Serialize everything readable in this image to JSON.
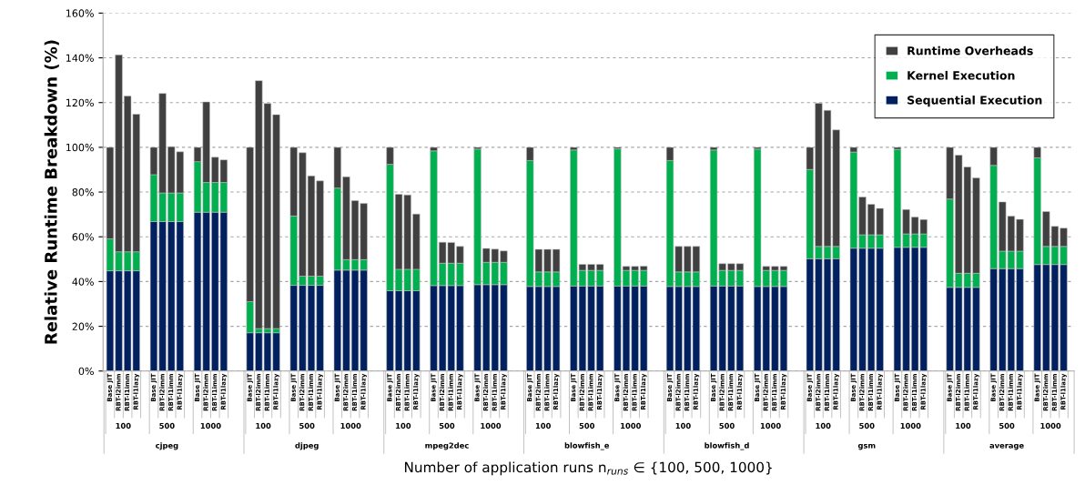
{
  "chart_data": {
    "type": "bar",
    "stacked": true,
    "ylabel": "Relative Runtime Breakdown (%)",
    "xlabel": "Number of application runs n$_{runs}$ ∈ {100, 500, 1000}",
    "categories": [
      "Base JIT",
      "RBT-l2imm",
      "RBT-l1imm",
      "RBT-l1lazy",
      null,
      "Base JIT",
      "RBT-l2imm",
      "RBT-l1imm",
      "RBT-l1lazy",
      null,
      "Base JIT",
      "RBT-l2imm",
      "RBT-l1imm",
      "RBT-l1lazy",
      null,
      null,
      "Base JIT",
      "RBT-l2imm",
      "RBT-l1imm",
      "RBT-l1lazy",
      null,
      "Base JIT",
      "RBT-l2imm",
      "RBT-l1imm",
      "RBT-l1lazy",
      null,
      "Base JIT",
      "RBT-l2imm",
      "RBT-l1imm",
      "RBT-l1lazy",
      null,
      null,
      "Base JIT",
      "RBT-l2imm",
      "RBT-l1imm",
      "RBT-l1lazy",
      null,
      "Base JIT",
      "RBT-l2imm",
      "RBT-l1imm",
      "RBT-l1lazy",
      null,
      "Base JIT",
      "RBT-l2imm",
      "RBT-l1imm",
      "RBT-l1lazy",
      null,
      null,
      "Base JIT",
      "RBT-l2imm",
      "RBT-l1imm",
      "RBT-l1lazy",
      null,
      "Base JIT",
      "RBT-l2imm",
      "RBT-l1imm",
      "RBT-l1lazy",
      null,
      "Base JIT",
      "RBT-l2imm",
      "RBT-l1imm",
      "RBT-l1lazy",
      null,
      null,
      "Base JIT",
      "RBT-l2imm",
      "RBT-l1imm",
      "RBT-l1lazy",
      null,
      "Base JIT",
      "RBT-l2imm",
      "RBT-l1imm",
      "RBT-l1lazy",
      null,
      "Base JIT",
      "RBT-l2imm",
      "RBT-l1imm",
      "RBT-l1lazy",
      null,
      null,
      "Base JIT",
      "RBT-l2imm",
      "RBT-l1imm",
      "RBT-l1lazy",
      null,
      "Base JIT",
      "RBT-l2imm",
      "RBT-l1imm",
      "RBT-l1lazy",
      null,
      "Base JIT",
      "RBT-l2imm",
      "RBT-l1imm",
      "RBT-l1lazy",
      null,
      null,
      "Base JIT",
      "RBT-l2imm",
      "RBT-l1imm",
      "RBT-l1lazy",
      null,
      "Base JIT",
      "RBT-l2imm",
      "RBT-l1imm",
      "RBT-l1lazy",
      null,
      "Base JIT",
      "RBT-l2imm",
      "RBT-l1imm",
      "RBT-l1lazy"
    ],
    "series": [
      {
        "name": "Sequential Execution",
        "color": "#002060",
        "values": [
          44.8,
          44.8,
          44.8,
          44.8,
          null,
          66.8,
          66.8,
          66.8,
          66.8,
          null,
          71.0,
          71.0,
          71.0,
          71.0,
          null,
          null,
          17.1,
          17.1,
          17.1,
          17.1,
          null,
          38.3,
          38.3,
          38.3,
          38.3,
          null,
          45.1,
          45.1,
          45.1,
          45.1,
          null,
          null,
          35.9,
          35.9,
          35.9,
          35.9,
          null,
          38.2,
          38.2,
          38.2,
          38.2,
          null,
          38.6,
          38.6,
          38.6,
          38.6,
          null,
          null,
          37.8,
          37.8,
          37.8,
          37.8,
          null,
          38.0,
          38.0,
          38.0,
          38.0,
          null,
          38.0,
          38.0,
          38.0,
          38.0,
          null,
          null,
          37.8,
          37.8,
          37.8,
          37.8,
          null,
          38.0,
          38.0,
          38.0,
          38.0,
          null,
          37.8,
          37.8,
          37.8,
          37.8,
          null,
          null,
          50.2,
          50.2,
          50.2,
          50.2,
          null,
          54.9,
          54.9,
          54.9,
          54.9,
          null,
          55.3,
          55.3,
          55.3,
          55.3,
          null,
          null,
          37.4,
          37.4,
          37.4,
          37.4,
          null,
          45.8,
          45.8,
          45.8,
          45.8,
          null,
          47.6,
          47.6,
          47.6,
          47.6
        ]
      },
      {
        "name": "Kernel Execution",
        "color": "#00b050",
        "values": [
          14.3,
          8.5,
          8.5,
          8.5,
          null,
          21.0,
          12.8,
          12.8,
          12.8,
          null,
          22.6,
          13.3,
          13.3,
          13.3,
          null,
          null,
          13.9,
          1.9,
          1.9,
          1.9,
          null,
          31.0,
          4.1,
          4.1,
          4.1,
          null,
          36.7,
          4.7,
          4.7,
          4.7,
          null,
          null,
          56.5,
          9.6,
          9.6,
          9.6,
          null,
          60.2,
          10.0,
          10.0,
          10.0,
          null,
          60.6,
          10.0,
          10.0,
          10.0,
          null,
          null,
          56.3,
          6.5,
          6.5,
          6.5,
          null,
          60.8,
          7.0,
          7.0,
          7.0,
          null,
          61.3,
          7.0,
          7.0,
          7.0,
          null,
          null,
          56.3,
          6.5,
          6.5,
          6.5,
          null,
          60.8,
          7.0,
          7.0,
          7.0,
          null,
          61.4,
          7.2,
          7.2,
          7.2,
          null,
          null,
          39.9,
          5.5,
          5.5,
          5.5,
          null,
          43.0,
          6.0,
          6.0,
          6.0,
          null,
          43.8,
          6.0,
          6.0,
          6.0,
          null,
          null,
          39.5,
          6.3,
          6.3,
          6.3,
          null,
          46.1,
          7.8,
          7.8,
          7.8,
          null,
          47.7,
          8.1,
          8.1,
          8.1
        ]
      },
      {
        "name": "Runtime Overheads",
        "color": "#404040",
        "values": [
          40.9,
          88.0,
          69.6,
          61.5,
          null,
          12.2,
          44.5,
          20.7,
          18.4,
          null,
          6.4,
          36.0,
          11.3,
          10.1,
          null,
          null,
          69.0,
          110.8,
          100.6,
          95.6,
          null,
          30.7,
          55.2,
          44.8,
          42.6,
          null,
          18.2,
          37.0,
          26.4,
          25.1,
          null,
          null,
          7.6,
          33.5,
          33.2,
          24.7,
          null,
          1.6,
          9.4,
          9.3,
          7.5,
          null,
          0.8,
          6.2,
          5.9,
          5.1,
          null,
          null,
          5.9,
          10.1,
          10.1,
          10.1,
          null,
          1.2,
          2.7,
          2.7,
          2.7,
          null,
          0.7,
          1.8,
          1.8,
          1.9,
          null,
          null,
          5.9,
          11.4,
          11.4,
          11.4,
          null,
          1.2,
          3.0,
          3.0,
          3.0,
          null,
          0.8,
          1.8,
          1.8,
          1.8,
          null,
          null,
          9.9,
          64.0,
          60.8,
          52.1,
          null,
          2.1,
          16.9,
          13.6,
          11.8,
          null,
          0.9,
          10.9,
          7.5,
          6.4,
          null,
          null,
          23.1,
          52.8,
          47.5,
          42.6,
          null,
          8.1,
          22.0,
          15.6,
          14.2,
          null,
          4.7,
          15.6,
          9.0,
          8.2
        ]
      }
    ],
    "annotations": [
      "100",
      "500",
      "1000",
      "100",
      "500",
      "1000",
      "100",
      "500",
      "1000",
      "100",
      "500",
      "1000",
      "100",
      "500",
      "1000",
      "100",
      "500",
      "1000",
      "100",
      "500",
      "1000",
      "cjpeg",
      "djpeg",
      "mpeg2dec",
      "blowfish_e",
      "blowfish_d",
      "gsm",
      "average"
    ],
    "ylim": [
      0,
      160
    ],
    "yticks": [
      {
        "value": 0,
        "label": "0%"
      },
      {
        "value": 20,
        "label": "20%"
      },
      {
        "value": 40,
        "label": "40%"
      },
      {
        "value": 60,
        "label": "60%"
      },
      {
        "value": 80,
        "label": "80%"
      },
      {
        "value": 100,
        "label": "100%"
      },
      {
        "value": 120,
        "label": "120%"
      },
      {
        "value": 140,
        "label": "140%"
      },
      {
        "value": 160,
        "label": "160%"
      }
    ],
    "grid": "y",
    "legend": "top right"
  }
}
